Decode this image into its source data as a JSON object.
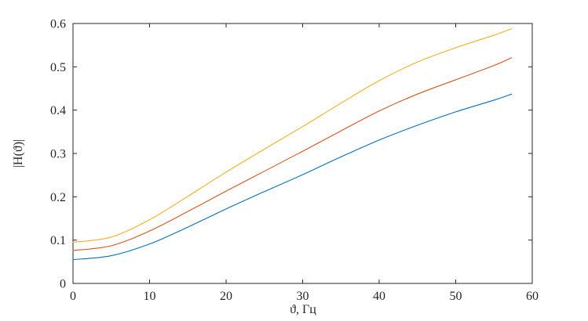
{
  "figure": {
    "background": "#ffffff",
    "axes_color": "#262626",
    "tick_length": 5,
    "x_ticks": [
      {
        "value": 0,
        "label": "0"
      },
      {
        "value": 10,
        "label": "10"
      },
      {
        "value": 20,
        "label": "20"
      },
      {
        "value": 30,
        "label": "30"
      },
      {
        "value": 40,
        "label": "40"
      },
      {
        "value": 50,
        "label": "50"
      },
      {
        "value": 60,
        "label": "60"
      }
    ],
    "y_ticks": [
      {
        "value": 0.0,
        "label": "0"
      },
      {
        "value": 0.1,
        "label": "0.1"
      },
      {
        "value": 0.2,
        "label": "0.2"
      },
      {
        "value": 0.3,
        "label": "0.3"
      },
      {
        "value": 0.4,
        "label": "0.4"
      },
      {
        "value": 0.5,
        "label": "0.5"
      },
      {
        "value": 0.6,
        "label": "0.6"
      }
    ]
  },
  "chart_data": {
    "type": "line",
    "title": "",
    "xlabel": "ϑ, Гц",
    "ylabel": "|H(ϑ)|",
    "xlim": [
      0,
      60
    ],
    "ylim": [
      0,
      0.6
    ],
    "grid": false,
    "legend": null,
    "x": [
      0,
      5,
      10,
      15,
      20,
      25,
      30,
      35,
      40,
      45,
      50,
      55,
      57.3
    ],
    "series": [
      {
        "id": "curve-1-blue",
        "color": "#0072BD",
        "values": [
          0.055,
          0.064,
          0.091,
          0.13,
          0.172,
          0.212,
          0.251,
          0.292,
          0.331,
          0.365,
          0.396,
          0.423,
          0.437
        ]
      },
      {
        "id": "curve-2-orange",
        "color": "#D95319",
        "values": [
          0.076,
          0.087,
          0.121,
          0.166,
          0.213,
          0.259,
          0.305,
          0.352,
          0.398,
          0.437,
          0.47,
          0.503,
          0.521
        ]
      },
      {
        "id": "curve-3-yellow",
        "color": "#EDB120",
        "values": [
          0.095,
          0.107,
          0.147,
          0.201,
          0.257,
          0.31,
          0.362,
          0.416,
          0.468,
          0.511,
          0.544,
          0.573,
          0.588
        ]
      }
    ]
  }
}
